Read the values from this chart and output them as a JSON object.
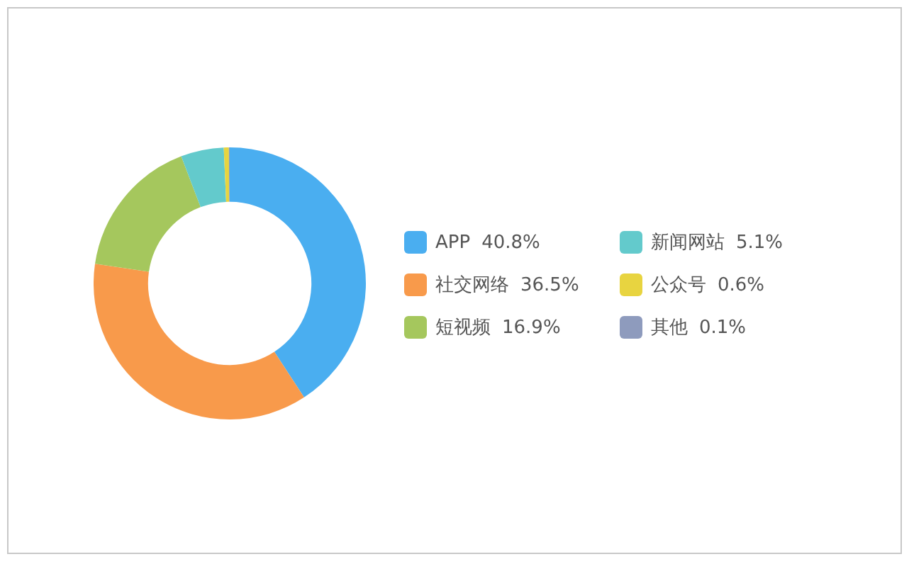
{
  "chart_data": {
    "type": "donut",
    "categories": [
      "APP",
      "社交网络",
      "短视频",
      "新闻网站",
      "公众号",
      "其他"
    ],
    "values": [
      40.8,
      36.5,
      16.9,
      5.1,
      0.6,
      0.1
    ],
    "value_labels": [
      "40.8%",
      "36.5%",
      "16.9%",
      "5.1%",
      "0.6%",
      "0.1%"
    ],
    "colors": [
      "#4aaef0",
      "#f89a4b",
      "#a5c75d",
      "#63cacc",
      "#e8d440",
      "#8e9bbd"
    ],
    "legend": "right"
  }
}
